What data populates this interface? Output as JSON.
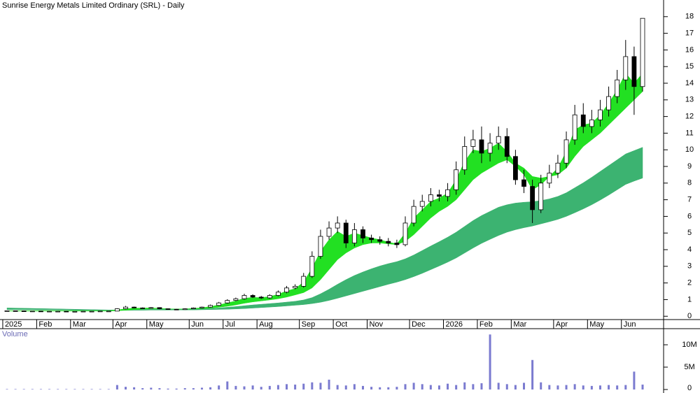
{
  "chart_data": [
    {
      "type": "candlestick",
      "title": "Sunrise Energy Metals Limited Ordinary (SRL) - Daily",
      "categories": [
        "2025",
        null,
        null,
        null,
        "Feb",
        null,
        null,
        null,
        "Mar",
        null,
        null,
        null,
        null,
        "Apr",
        null,
        null,
        null,
        "May",
        null,
        null,
        null,
        null,
        "Jun",
        null,
        null,
        null,
        "Jul",
        null,
        null,
        null,
        "Aug",
        null,
        null,
        null,
        null,
        "Sep",
        null,
        null,
        null,
        "Oct",
        null,
        null,
        null,
        "Nov",
        null,
        null,
        null,
        null,
        "Dec",
        null,
        null,
        null,
        "2026",
        null,
        null,
        null,
        "Feb",
        null,
        null,
        null,
        "Mar",
        null,
        null,
        null,
        null,
        "Apr",
        null,
        null,
        null,
        "May",
        null,
        null,
        null,
        "Jun",
        null,
        null
      ],
      "open": [
        0.33,
        0.33,
        0.32,
        0.31,
        0.31,
        0.3,
        0.3,
        0.3,
        0.29,
        0.29,
        0.3,
        0.3,
        0.31,
        0.31,
        0.45,
        0.55,
        0.5,
        0.48,
        0.52,
        0.45,
        0.42,
        0.4,
        0.45,
        0.5,
        0.55,
        0.65,
        0.8,
        0.95,
        1.05,
        1.25,
        1.15,
        1.1,
        1.25,
        1.45,
        1.7,
        1.8,
        2.4,
        3.6,
        4.8,
        5.3,
        5.6,
        4.4,
        5.2,
        4.7,
        4.6,
        4.5,
        4.4,
        4.3,
        5.6,
        6.6,
        6.9,
        7.3,
        7.2,
        7.6,
        8.8,
        10.2,
        10.6,
        9.8,
        10.4,
        10.8,
        9.6,
        8.2,
        7.8,
        6.4,
        8.0,
        8.6,
        9.2,
        10.6,
        12.1,
        11.4,
        11.8,
        12.4,
        13.2,
        14.2,
        15.6,
        13.8
      ],
      "high": [
        0.35,
        0.34,
        0.33,
        0.32,
        0.32,
        0.31,
        0.31,
        0.31,
        0.3,
        0.31,
        0.31,
        0.32,
        0.32,
        0.48,
        0.62,
        0.58,
        0.53,
        0.55,
        0.54,
        0.47,
        0.44,
        0.48,
        0.53,
        0.58,
        0.7,
        0.86,
        1.02,
        1.12,
        1.35,
        1.32,
        1.22,
        1.32,
        1.55,
        1.82,
        1.92,
        2.6,
        3.9,
        5.2,
        5.7,
        6.0,
        5.8,
        5.6,
        5.4,
        4.9,
        4.8,
        4.7,
        4.6,
        6.0,
        7.0,
        7.3,
        7.7,
        7.6,
        8.0,
        9.3,
        10.8,
        11.2,
        11.4,
        11.0,
        11.4,
        11.3,
        10.0,
        8.8,
        8.2,
        8.5,
        9.1,
        9.7,
        11.1,
        12.7,
        12.8,
        12.4,
        13.0,
        13.8,
        14.8,
        16.6,
        16.2,
        17.9
      ],
      "low": [
        0.31,
        0.31,
        0.3,
        0.3,
        0.29,
        0.29,
        0.29,
        0.28,
        0.28,
        0.28,
        0.29,
        0.29,
        0.3,
        0.3,
        0.42,
        0.47,
        0.45,
        0.46,
        0.42,
        0.4,
        0.38,
        0.38,
        0.43,
        0.48,
        0.52,
        0.62,
        0.76,
        0.9,
        1.0,
        1.1,
        1.04,
        1.05,
        1.2,
        1.38,
        1.62,
        1.72,
        2.3,
        3.45,
        4.6,
        5.0,
        4.1,
        4.2,
        4.4,
        4.4,
        4.3,
        4.2,
        4.1,
        4.2,
        5.4,
        6.3,
        6.6,
        6.9,
        6.9,
        7.3,
        8.5,
        9.8,
        9.2,
        9.3,
        10.0,
        9.2,
        7.9,
        7.4,
        5.6,
        6.2,
        7.7,
        8.3,
        8.9,
        10.3,
        11.0,
        11.0,
        11.4,
        12.0,
        12.8,
        13.6,
        12.1,
        13.5
      ],
      "close": [
        0.33,
        0.32,
        0.31,
        0.31,
        0.3,
        0.3,
        0.3,
        0.29,
        0.29,
        0.3,
        0.3,
        0.31,
        0.31,
        0.45,
        0.55,
        0.5,
        0.48,
        0.52,
        0.45,
        0.42,
        0.4,
        0.45,
        0.5,
        0.55,
        0.65,
        0.8,
        0.95,
        1.05,
        1.25,
        1.15,
        1.1,
        1.25,
        1.45,
        1.7,
        1.8,
        2.4,
        3.6,
        4.8,
        5.3,
        5.6,
        4.4,
        5.2,
        4.7,
        4.6,
        4.5,
        4.4,
        4.3,
        5.6,
        6.6,
        6.9,
        7.3,
        7.2,
        7.6,
        8.8,
        10.2,
        10.6,
        9.8,
        10.4,
        10.8,
        9.6,
        8.2,
        7.8,
        6.4,
        8.0,
        8.6,
        9.2,
        10.6,
        12.1,
        11.4,
        11.8,
        12.4,
        13.2,
        14.2,
        15.6,
        13.8,
        17.9
      ],
      "bands": [
        {
          "color": "#3cb371",
          "lower": [
            0.4,
            0.4,
            0.39,
            0.39,
            0.38,
            0.38,
            0.37,
            0.37,
            0.36,
            0.36,
            0.36,
            0.35,
            0.35,
            0.35,
            0.35,
            0.36,
            0.36,
            0.37,
            0.37,
            0.37,
            0.38,
            0.38,
            0.38,
            0.39,
            0.4,
            0.41,
            0.42,
            0.44,
            0.46,
            0.49,
            0.52,
            0.55,
            0.58,
            0.62,
            0.66,
            0.7,
            0.76,
            0.84,
            0.95,
            1.08,
            1.22,
            1.36,
            1.5,
            1.64,
            1.78,
            1.92,
            2.05,
            2.2,
            2.38,
            2.58,
            2.8,
            3.02,
            3.25,
            3.5,
            3.8,
            4.1,
            4.38,
            4.62,
            4.85,
            5.05,
            5.2,
            5.32,
            5.42,
            5.55,
            5.68,
            5.82,
            6.0,
            6.22,
            6.45,
            6.7,
            6.98,
            7.28,
            7.6,
            7.92,
            8.12,
            8.3
          ],
          "upper": [
            0.5,
            0.49,
            0.48,
            0.47,
            0.46,
            0.45,
            0.44,
            0.43,
            0.42,
            0.41,
            0.4,
            0.39,
            0.38,
            0.38,
            0.39,
            0.4,
            0.41,
            0.42,
            0.42,
            0.42,
            0.42,
            0.43,
            0.44,
            0.45,
            0.47,
            0.5,
            0.54,
            0.58,
            0.63,
            0.68,
            0.72,
            0.76,
            0.8,
            0.85,
            0.9,
            0.98,
            1.12,
            1.35,
            1.62,
            1.92,
            2.2,
            2.45,
            2.66,
            2.85,
            3.02,
            3.16,
            3.28,
            3.45,
            3.68,
            3.95,
            4.22,
            4.48,
            4.75,
            5.05,
            5.4,
            5.75,
            6.05,
            6.3,
            6.55,
            6.7,
            6.8,
            6.85,
            6.88,
            6.95,
            7.05,
            7.2,
            7.42,
            7.72,
            8.02,
            8.35,
            8.7,
            9.05,
            9.4,
            9.75,
            9.95,
            10.15
          ]
        },
        {
          "color": "#22e022",
          "lower": [
            0.31,
            0.31,
            0.31,
            0.31,
            0.31,
            0.31,
            0.31,
            0.31,
            0.31,
            0.31,
            0.31,
            0.31,
            0.31,
            0.33,
            0.36,
            0.4,
            0.43,
            0.45,
            0.45,
            0.44,
            0.43,
            0.43,
            0.44,
            0.46,
            0.49,
            0.54,
            0.6,
            0.68,
            0.78,
            0.86,
            0.92,
            0.98,
            1.05,
            1.15,
            1.28,
            1.42,
            1.7,
            2.2,
            2.8,
            3.4,
            3.8,
            4.1,
            4.3,
            4.4,
            4.4,
            4.35,
            4.3,
            4.5,
            4.9,
            5.4,
            5.9,
            6.3,
            6.6,
            7.0,
            7.6,
            8.2,
            8.6,
            8.9,
            9.2,
            9.4,
            9.0,
            8.5,
            7.6,
            7.9,
            8.4,
            8.5,
            8.9,
            9.6,
            10.2,
            10.6,
            11.0,
            11.5,
            12.0,
            12.5,
            13.0,
            13.5
          ],
          "upper": [
            0.33,
            0.33,
            0.33,
            0.33,
            0.33,
            0.33,
            0.33,
            0.33,
            0.33,
            0.33,
            0.33,
            0.33,
            0.33,
            0.38,
            0.45,
            0.49,
            0.49,
            0.5,
            0.48,
            0.45,
            0.43,
            0.44,
            0.47,
            0.51,
            0.58,
            0.68,
            0.8,
            0.92,
            1.08,
            1.13,
            1.12,
            1.18,
            1.32,
            1.52,
            1.66,
            2.05,
            2.9,
            3.9,
            4.6,
            5.1,
            4.8,
            5.0,
            4.85,
            4.7,
            4.6,
            4.45,
            4.35,
            5.0,
            5.9,
            6.4,
            6.9,
            7.1,
            7.4,
            8.2,
            9.3,
            10.0,
            9.9,
            10.1,
            10.4,
            9.9,
            9.2,
            8.9,
            8.4,
            8.3,
            8.4,
            8.9,
            9.9,
            11.2,
            11.5,
            11.6,
            12.1,
            12.8,
            13.6,
            14.6,
            14.0,
            14.6
          ]
        }
      ],
      "ylim": [
        -0.2,
        19
      ],
      "yticks": [
        0,
        1,
        2,
        3,
        4,
        5,
        6,
        7,
        8,
        9,
        10,
        11,
        12,
        13,
        14,
        15,
        16,
        17,
        18
      ]
    },
    {
      "type": "bar",
      "title": "Volume",
      "color": "#7b7bd0",
      "values": [
        0.1,
        0.1,
        0.1,
        0.1,
        0.1,
        0.1,
        0.1,
        0.1,
        0.1,
        0.1,
        0.1,
        0.1,
        0.1,
        1.0,
        0.6,
        0.5,
        0.3,
        0.4,
        0.3,
        0.2,
        0.2,
        0.3,
        0.3,
        0.4,
        0.5,
        0.9,
        1.8,
        0.8,
        0.7,
        0.9,
        0.6,
        0.8,
        1.0,
        1.2,
        1.1,
        1.3,
        1.6,
        1.5,
        2.2,
        1.0,
        0.9,
        1.2,
        0.8,
        0.6,
        0.5,
        0.5,
        0.6,
        1.2,
        1.5,
        1.2,
        1.0,
        0.9,
        1.3,
        1.0,
        1.6,
        1.2,
        1.4,
        12.3,
        1.5,
        1.2,
        1.0,
        1.5,
        6.6,
        1.6,
        1.0,
        0.9,
        1.0,
        1.2,
        0.9,
        0.8,
        0.9,
        1.0,
        0.9,
        1.0,
        4.0,
        1.1
      ],
      "ylim": [
        0,
        13.6
      ],
      "yticks": [
        {
          "value": 10,
          "label": "10M"
        },
        {
          "value": 5,
          "label": "5M"
        },
        0
      ]
    }
  ]
}
